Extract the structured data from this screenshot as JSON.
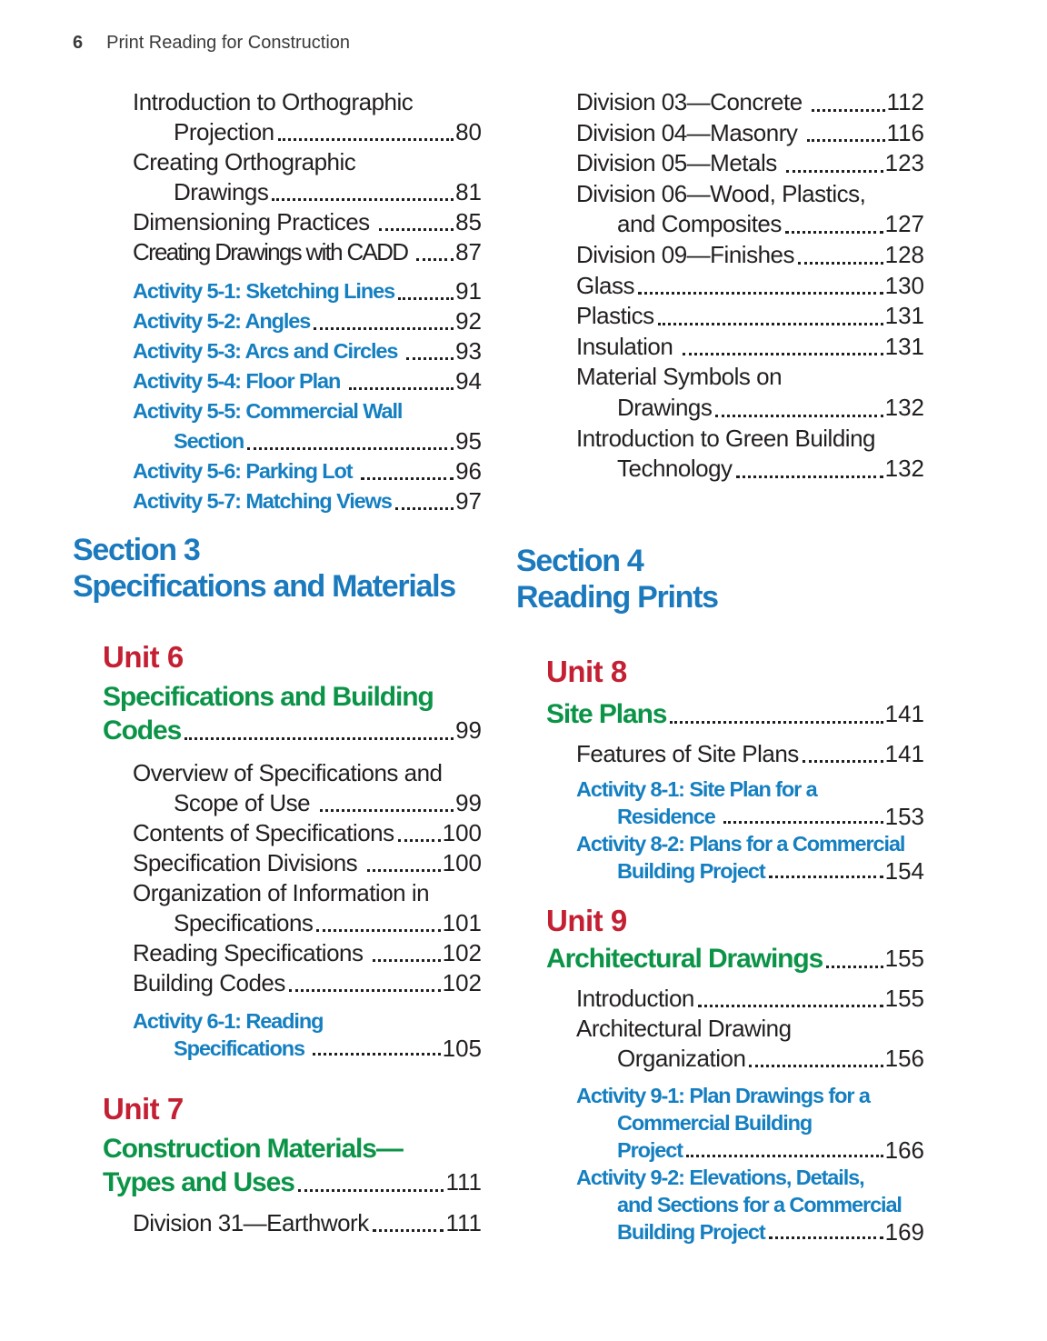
{
  "page": {
    "number": "6",
    "title": "Print Reading for Construction"
  },
  "colors": {
    "ink": "#231f20",
    "section_blue": "#1b7abd",
    "activity_blue": "#147fc1",
    "unit_red": "#c42033",
    "unit_green": "#0b9447",
    "running_head": "#3a3a3a"
  },
  "columns": {
    "left": {
      "blocks": [
        {
          "id": "ch5-topics",
          "type": "entries",
          "items": [
            {
              "kind": "plain",
              "lines": [
                "Introduction to Orthographic",
                "Projection"
              ],
              "page": "80"
            },
            {
              "kind": "plain",
              "lines": [
                "Creating Orthographic",
                "Drawings"
              ],
              "page": "81"
            },
            {
              "kind": "plain",
              "lines": [
                "Dimensioning Practices "
              ],
              "page": "85"
            },
            {
              "kind": "plain",
              "condensed": true,
              "lines": [
                "Creating Drawings with CADD "
              ],
              "page": "87"
            }
          ]
        },
        {
          "id": "ch5-activities",
          "type": "entries",
          "items": [
            {
              "kind": "activity",
              "lines": [
                "Activity 5-1: Sketching Lines"
              ],
              "page": "91"
            },
            {
              "kind": "activity",
              "lines": [
                "Activity 5-2: Angles"
              ],
              "page": "92"
            },
            {
              "kind": "activity",
              "lines": [
                "Activity 5-3: Arcs and Circles "
              ],
              "page": "93"
            },
            {
              "kind": "activity",
              "lines": [
                "Activity 5-4: Floor Plan "
              ],
              "page": "94"
            },
            {
              "kind": "activity",
              "lines": [
                "Activity 5-5: Commercial Wall",
                "Section"
              ],
              "page": "95"
            },
            {
              "kind": "activity",
              "lines": [
                "Activity 5-6: Parking Lot "
              ],
              "page": "96"
            },
            {
              "kind": "activity",
              "lines": [
                "Activity 5-7: Matching Views"
              ],
              "page": "97"
            }
          ]
        },
        {
          "id": "section3",
          "type": "section",
          "lines": [
            "Section 3",
            "Specifications and Materials"
          ]
        },
        {
          "id": "unit6",
          "type": "unit",
          "title": "Unit 6"
        },
        {
          "id": "unit6-subtitle",
          "type": "unitSubtitle",
          "lines": [
            "Specifications and Building",
            "Codes"
          ],
          "page": "99"
        },
        {
          "id": "unit6-topics",
          "type": "entries",
          "items": [
            {
              "kind": "plain",
              "lines": [
                "Overview of Specifications and",
                "Scope of Use "
              ],
              "page": "99"
            },
            {
              "kind": "plain",
              "lines": [
                "Contents of Specifications"
              ],
              "page": "100"
            },
            {
              "kind": "plain",
              "lines": [
                "Specification Divisions "
              ],
              "page": "100"
            },
            {
              "kind": "plain",
              "lines": [
                "Organization of Information in",
                "Specifications"
              ],
              "page": "101"
            },
            {
              "kind": "plain",
              "lines": [
                "Reading Specifications "
              ],
              "page": "102"
            },
            {
              "kind": "plain",
              "lines": [
                "Building Codes"
              ],
              "page": "102"
            }
          ]
        },
        {
          "id": "unit6-activities",
          "type": "entries",
          "items": [
            {
              "kind": "activity",
              "lines": [
                "Activity 6-1: Reading",
                "Specifications "
              ],
              "page": "105"
            }
          ]
        },
        {
          "id": "unit7",
          "type": "unit",
          "title": "Unit 7"
        },
        {
          "id": "unit7-subtitle",
          "type": "unitSubtitle",
          "lines": [
            "Construction Materials—",
            "Types and Uses"
          ],
          "page": "111"
        },
        {
          "id": "unit7-topics",
          "type": "entries",
          "items": [
            {
              "kind": "plain",
              "lines": [
                "Division 31—Earthwork"
              ],
              "page": "111"
            }
          ]
        }
      ]
    },
    "right": {
      "blocks": [
        {
          "id": "div-topics",
          "type": "entries",
          "items": [
            {
              "kind": "plain",
              "lines": [
                "Division 03—Concrete "
              ],
              "page": "112"
            },
            {
              "kind": "plain",
              "lines": [
                "Division 04—Masonry "
              ],
              "page": "116"
            },
            {
              "kind": "plain",
              "lines": [
                "Division 05—Metals "
              ],
              "page": "123"
            },
            {
              "kind": "plain",
              "lines": [
                "Division 06—Wood, Plastics,",
                "and Composites"
              ],
              "page": "127"
            },
            {
              "kind": "plain",
              "lines": [
                "Division 09—Finishes"
              ],
              "page": "128"
            },
            {
              "kind": "plain",
              "lines": [
                "Glass"
              ],
              "page": "130"
            },
            {
              "kind": "plain",
              "lines": [
                "Plastics"
              ],
              "page": "131"
            },
            {
              "kind": "plain",
              "lines": [
                "Insulation "
              ],
              "page": "131"
            },
            {
              "kind": "plain",
              "lines": [
                "Material Symbols on",
                "Drawings"
              ],
              "page": "132"
            },
            {
              "kind": "plain",
              "lines": [
                "Introduction to Green Building",
                "Technology"
              ],
              "page": "132"
            }
          ]
        },
        {
          "id": "section4",
          "type": "section",
          "lines": [
            "Section 4",
            "Reading Prints"
          ]
        },
        {
          "id": "unit8",
          "type": "unit",
          "title": "Unit 8"
        },
        {
          "id": "unit8-subtitle",
          "type": "unitSubtitle",
          "lines": [
            "Site Plans"
          ],
          "page": "141"
        },
        {
          "id": "unit8-topics",
          "type": "entries",
          "items": [
            {
              "kind": "plain",
              "lines": [
                "Features of Site Plans"
              ],
              "page": "141"
            }
          ]
        },
        {
          "id": "unit8-activities",
          "type": "entries",
          "items": [
            {
              "kind": "activity",
              "lines": [
                "Activity 8-1: Site Plan for a",
                "Residence "
              ],
              "page": "153"
            },
            {
              "kind": "activity",
              "lines": [
                "Activity 8-2: Plans for a Commercial",
                "Building Project"
              ],
              "page": "154"
            }
          ]
        },
        {
          "id": "unit9",
          "type": "unit",
          "title": "Unit 9"
        },
        {
          "id": "unit9-subtitle",
          "type": "unitSubtitle",
          "lines": [
            "Architectural Drawings"
          ],
          "page": "155"
        },
        {
          "id": "unit9-topics",
          "type": "entries",
          "items": [
            {
              "kind": "plain",
              "lines": [
                "Introduction"
              ],
              "page": "155"
            },
            {
              "kind": "plain",
              "lines": [
                "Architectural Drawing",
                "Organization"
              ],
              "page": "156"
            }
          ]
        },
        {
          "id": "unit9-activities",
          "type": "entries",
          "items": [
            {
              "kind": "activity",
              "lines": [
                "Activity 9-1: Plan Drawings for a",
                "Commercial Building",
                "Project"
              ],
              "page": "166"
            },
            {
              "kind": "activity",
              "lines": [
                "Activity 9-2: Elevations, Details,",
                "and Sections for a Commercial",
                "Building Project"
              ],
              "page": "169"
            }
          ]
        }
      ]
    }
  }
}
